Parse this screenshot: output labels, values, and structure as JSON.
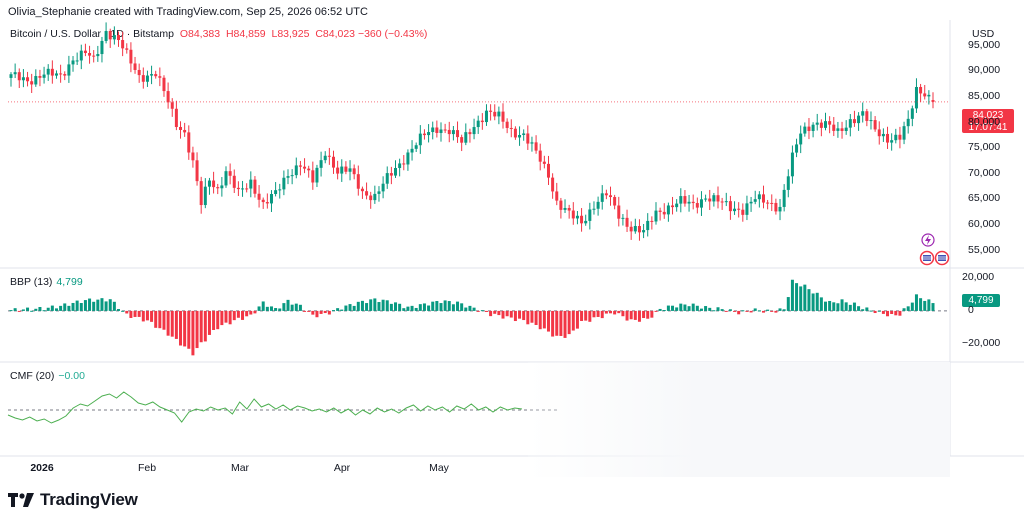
{
  "header": {
    "attribution": "Olivia_Stephanie created with TradingView.com, Sep 25, 2026 06:52 UTC",
    "symbol": "Bitcoin / U.S. Dollar · 1D · Bitstamp",
    "open": "O84,383",
    "high": "H84,859",
    "low": "L83,925",
    "close": "C84,023",
    "change": "−360 (−0.43%)",
    "currency": "USD"
  },
  "price_tag": {
    "price": "84,023",
    "countdown": "17:07:41"
  },
  "bbp": {
    "label": "BBP (13)",
    "value": "4,799",
    "tag": "4,799"
  },
  "cmf": {
    "label": "CMF (20)",
    "value": "−0.00"
  },
  "logo": {
    "text": "TradingView"
  },
  "colors": {
    "up": "#089981",
    "down": "#f23645",
    "cmf_line": "#4caf50",
    "grid": "#e0e3eb"
  },
  "chart_data": [
    {
      "type": "candlestick",
      "title": "Bitcoin / U.S. Dollar · 1D · Bitstamp",
      "ylabel": "USD",
      "ylim": [
        52000,
        100000
      ],
      "yticks": [
        "95,000",
        "90,000",
        "85,000",
        "80,000",
        "75,000",
        "70,000",
        "65,000",
        "60,000",
        "55,000"
      ],
      "x_ticks": [
        "2026",
        "Feb",
        "Mar",
        "Apr",
        "May"
      ],
      "last_close": 84023,
      "close_path": [
        [
          0,
          89000
        ],
        [
          4,
          88200
        ],
        [
          8,
          89500
        ],
        [
          12,
          89000
        ],
        [
          15,
          92500
        ],
        [
          18,
          93500
        ],
        [
          20,
          92000
        ],
        [
          23,
          98000
        ],
        [
          26,
          96000
        ],
        [
          28,
          93000
        ],
        [
          31,
          89000
        ],
        [
          35,
          89500
        ],
        [
          38,
          84000
        ],
        [
          40,
          80000
        ],
        [
          42,
          78000
        ],
        [
          44,
          72000
        ],
        [
          46,
          64000
        ],
        [
          48,
          69000
        ],
        [
          50,
          67000
        ],
        [
          52,
          70500
        ],
        [
          55,
          66000
        ],
        [
          58,
          68500
        ],
        [
          61,
          64000
        ],
        [
          64,
          66000
        ],
        [
          67,
          70000
        ],
        [
          70,
          72000
        ],
        [
          73,
          68500
        ],
        [
          76,
          74500
        ],
        [
          79,
          70500
        ],
        [
          82,
          70500
        ],
        [
          85,
          66500
        ],
        [
          88,
          65500
        ],
        [
          91,
          69000
        ],
        [
          94,
          72000
        ],
        [
          97,
          75000
        ],
        [
          100,
          77500
        ],
        [
          103,
          79000
        ],
        [
          106,
          78500
        ],
        [
          109,
          76000
        ],
        [
          112,
          79500
        ],
        [
          115,
          82000
        ],
        [
          118,
          81000
        ],
        [
          121,
          78500
        ],
        [
          124,
          77500
        ],
        [
          127,
          74000
        ],
        [
          130,
          70000
        ],
        [
          132,
          64500
        ],
        [
          135,
          62000
        ],
        [
          138,
          60500
        ],
        [
          141,
          64000
        ],
        [
          144,
          66000
        ],
        [
          147,
          62000
        ],
        [
          150,
          59500
        ],
        [
          153,
          58500
        ],
        [
          156,
          62500
        ],
        [
          159,
          63500
        ],
        [
          162,
          64500
        ],
        [
          165,
          64000
        ],
        [
          168,
          65500
        ],
        [
          171,
          64500
        ],
        [
          174,
          63500
        ],
        [
          177,
          63000
        ],
        [
          180,
          65000
        ],
        [
          183,
          64500
        ],
        [
          186,
          63500
        ],
        [
          189,
          73000
        ],
        [
          191,
          78000
        ],
        [
          194,
          80000
        ],
        [
          197,
          79500
        ],
        [
          200,
          78000
        ],
        [
          203,
          80500
        ],
        [
          206,
          81500
        ],
        [
          209,
          78500
        ],
        [
          212,
          77000
        ],
        [
          215,
          77000
        ],
        [
          217,
          80000
        ],
        [
          219,
          86500
        ],
        [
          221,
          86000
        ],
        [
          223,
          84023
        ]
      ]
    },
    {
      "type": "bar",
      "title": "BBP (13)",
      "ylim": [
        -30000,
        25000
      ],
      "yticks": [
        "20,000",
        "0",
        "−20,000"
      ],
      "last_value": 4799,
      "value_path": [
        [
          0,
          500
        ],
        [
          8,
          1500
        ],
        [
          12,
          3000
        ],
        [
          18,
          6500
        ],
        [
          24,
          7000
        ],
        [
          28,
          -2500
        ],
        [
          33,
          -6000
        ],
        [
          38,
          -14000
        ],
        [
          42,
          -22000
        ],
        [
          44,
          -26000
        ],
        [
          46,
          -20000
        ],
        [
          50,
          -10000
        ],
        [
          55,
          -5000
        ],
        [
          58,
          -3000
        ],
        [
          61,
          5000
        ],
        [
          64,
          1000
        ],
        [
          67,
          6000
        ],
        [
          70,
          3000
        ],
        [
          73,
          -3000
        ],
        [
          76,
          -2000
        ],
        [
          80,
          2000
        ],
        [
          84,
          5000
        ],
        [
          88,
          7000
        ],
        [
          92,
          5500
        ],
        [
          96,
          2000
        ],
        [
          100,
          4000
        ],
        [
          104,
          6000
        ],
        [
          108,
          5000
        ],
        [
          112,
          1500
        ],
        [
          116,
          -2000
        ],
        [
          120,
          -4000
        ],
        [
          124,
          -6000
        ],
        [
          128,
          -10000
        ],
        [
          132,
          -16000
        ],
        [
          135,
          -15000
        ],
        [
          138,
          -7000
        ],
        [
          142,
          -4000
        ],
        [
          146,
          -1000
        ],
        [
          150,
          -6000
        ],
        [
          154,
          -5000
        ],
        [
          157,
          1000
        ],
        [
          160,
          3000
        ],
        [
          164,
          4000
        ],
        [
          168,
          2000
        ],
        [
          172,
          1000
        ],
        [
          176,
          -1000
        ],
        [
          180,
          500
        ],
        [
          184,
          -500
        ],
        [
          187,
          1000
        ],
        [
          189,
          18000
        ],
        [
          192,
          15000
        ],
        [
          195,
          10000
        ],
        [
          198,
          5000
        ],
        [
          201,
          6000
        ],
        [
          204,
          4000
        ],
        [
          207,
          1000
        ],
        [
          210,
          -1000
        ],
        [
          213,
          -3000
        ],
        [
          215,
          -2000
        ],
        [
          217,
          3000
        ],
        [
          219,
          9000
        ],
        [
          221,
          7000
        ],
        [
          223,
          4799
        ]
      ]
    },
    {
      "type": "line",
      "title": "CMF (20)",
      "last_value": 0.0,
      "ylim": [
        -0.3,
        0.3
      ],
      "values": [
        -0.05,
        -0.08,
        -0.1,
        -0.07,
        -0.11,
        -0.09,
        -0.13,
        -0.1,
        -0.06,
        0.02,
        0.06,
        0.04,
        0.09,
        0.14,
        0.16,
        0.12,
        0.18,
        0.13,
        0.07,
        0.05,
        0.08,
        0.03,
        0.0,
        -0.03,
        -0.12,
        -0.02,
        0.01,
        -0.01,
        0.03,
        0.0,
        0.02,
        -0.04,
        0.08,
        0.01,
        0.11,
        0.03,
        0.06,
        0.01,
        0.05,
        0.0,
        0.04,
        0.02,
        -0.01,
        0.01,
        -0.02,
        0.02,
        -0.03,
        0.01,
        -0.05,
        0.0,
        -0.04,
        0.02,
        -0.02,
        0.01,
        -0.03,
        0.02,
        0.05,
        -0.01,
        0.04,
        0.0,
        0.03,
        -0.02,
        0.04,
        0.01,
        0.06,
        0.0,
        0.03,
        -0.02,
        0.03,
        0.0,
        0.02,
        0.01
      ]
    }
  ]
}
